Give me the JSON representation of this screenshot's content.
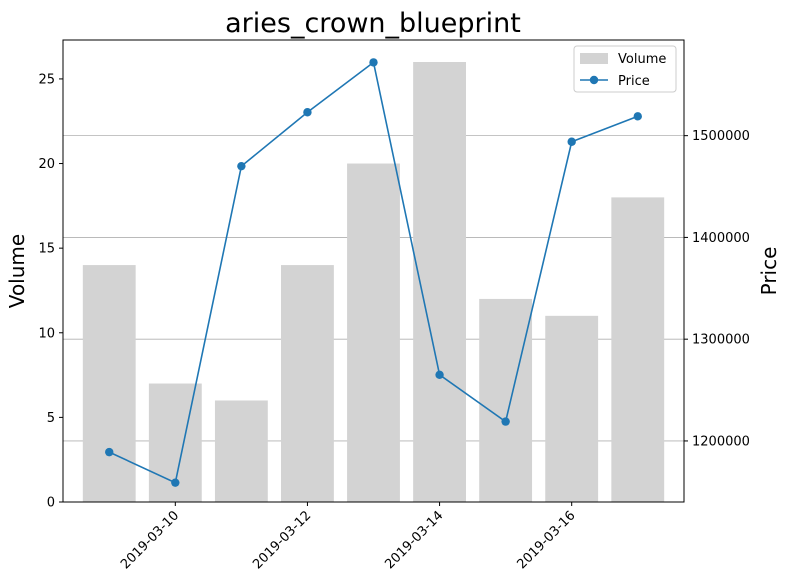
{
  "chart_data": {
    "type": "bar+line",
    "title": "aries_crown_blueprint",
    "ylabel": "Volume",
    "y2label": "Price",
    "x": [
      "2019-03-09",
      "2019-03-10",
      "2019-03-11",
      "2019-03-12",
      "2019-03-13",
      "2019-03-14",
      "2019-03-15",
      "2019-03-16",
      "2019-03-17"
    ],
    "xticks": [
      "2019-03-10",
      "2019-03-12",
      "2019-03-14",
      "2019-03-16"
    ],
    "ylim": [
      0,
      27.3
    ],
    "y2lim": [
      1140000,
      1594000
    ],
    "yticks": [
      0,
      5,
      10,
      15,
      20,
      25
    ],
    "y2ticks": [
      1200000,
      1300000,
      1400000,
      1500000
    ],
    "grid": "right-axis horizontal",
    "legend_position": "top-right",
    "series": [
      {
        "name": "Volume",
        "kind": "bar",
        "axis": "left",
        "color": "#d3d3d3",
        "values": [
          14,
          7,
          6,
          14,
          20,
          26,
          12,
          11,
          18
        ]
      },
      {
        "name": "Price",
        "kind": "line",
        "axis": "right",
        "color": "#1f77b4",
        "values": [
          1189000,
          1159000,
          1470000,
          1523000,
          1572000,
          1265000,
          1219000,
          1494000,
          1519000
        ]
      }
    ]
  }
}
